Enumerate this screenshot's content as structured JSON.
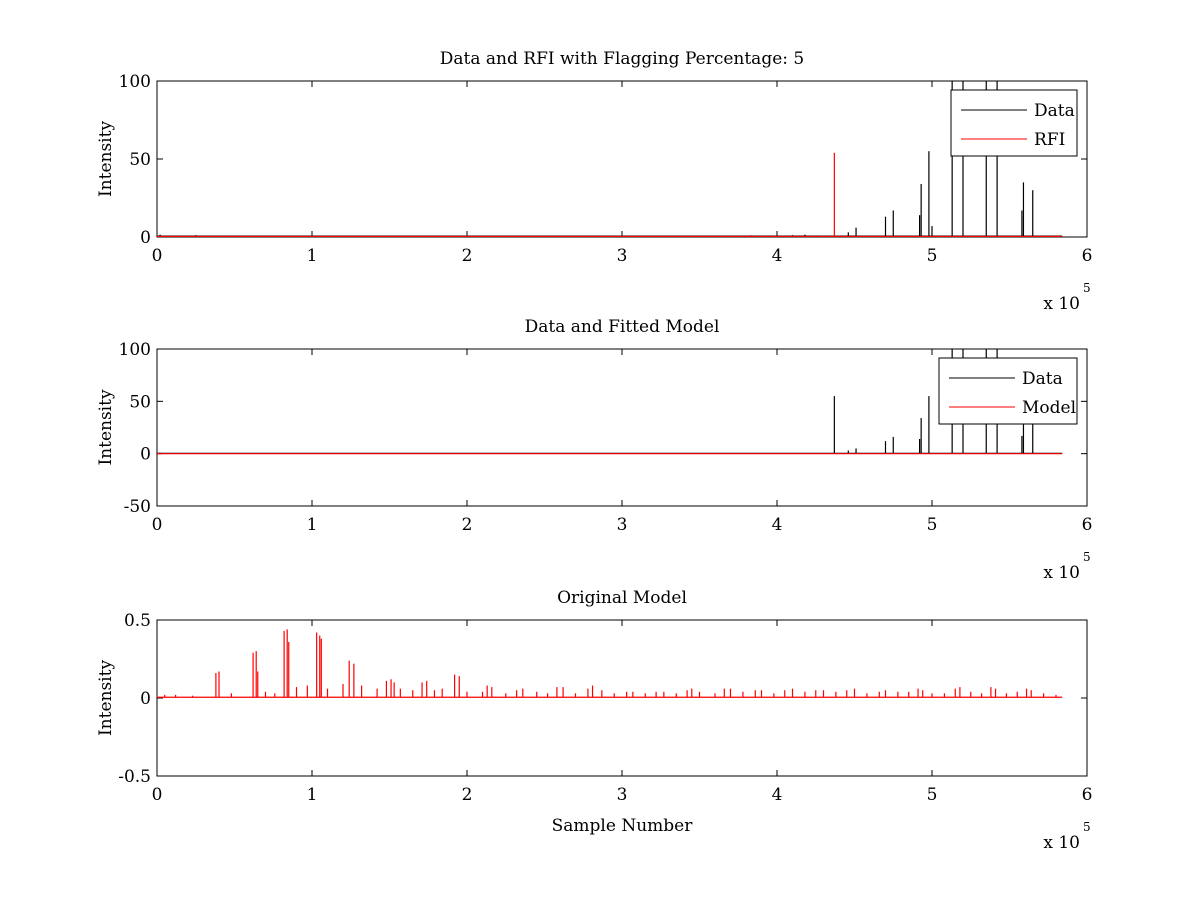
{
  "chart_data": [
    {
      "type": "line",
      "title": "Data and RFI with Flagging Percentage: 5",
      "xlabel": "",
      "ylabel": "Intensity",
      "xlim": [
        0,
        600000
      ],
      "ylim": [
        0,
        100
      ],
      "xticks": [
        "0",
        "1",
        "2",
        "3",
        "4",
        "5",
        "6"
      ],
      "yticks": [
        "0",
        "50",
        "100"
      ],
      "x_multiplier": {
        "text": "x 10",
        "exponent": "5"
      },
      "grid": false,
      "legend_position": "top-right",
      "series": [
        {
          "name": "Data",
          "color": "#000000",
          "baseline": 0.6,
          "spikes": [
            [
              2000,
              1.5
            ],
            [
              9000,
              1.0
            ],
            [
              25000,
              1.2
            ],
            [
              100000,
              0.8
            ],
            [
              200000,
              0.6
            ],
            [
              310000,
              0.9
            ],
            [
              340000,
              0.7
            ],
            [
              395000,
              1.0
            ],
            [
              410000,
              1.2
            ],
            [
              418000,
              1.5
            ],
            [
              426000,
              1.0
            ],
            [
              446000,
              3.0
            ],
            [
              451000,
              6.0
            ],
            [
              470000,
              13.0
            ],
            [
              475000,
              17.0
            ],
            [
              492000,
              14.0
            ],
            [
              493000,
              34.0
            ],
            [
              498000,
              55.0
            ],
            [
              500000,
              7.0
            ],
            [
              513000,
              100.0
            ],
            [
              520000,
              100.0
            ],
            [
              535000,
              100.0
            ],
            [
              542000,
              100.0
            ],
            [
              558000,
              17.0
            ],
            [
              559000,
              35.0
            ],
            [
              565000,
              30.0
            ],
            [
              583000,
              1.0
            ]
          ]
        },
        {
          "name": "RFI",
          "color": "#ff0000",
          "baseline": 0.3,
          "spikes": [
            [
              5000,
              0.6
            ],
            [
              50000,
              0.8
            ],
            [
              120000,
              0.5
            ],
            [
              210000,
              0.6
            ],
            [
              260000,
              0.5
            ],
            [
              285000,
              0.7
            ],
            [
              383000,
              1.2
            ],
            [
              437000,
              54.0
            ]
          ]
        }
      ]
    },
    {
      "type": "line",
      "title": "Data and Fitted Model",
      "xlabel": "",
      "ylabel": "Intensity",
      "xlim": [
        0,
        600000
      ],
      "ylim": [
        -50,
        100
      ],
      "xticks": [
        "0",
        "1",
        "2",
        "3",
        "4",
        "5",
        "6"
      ],
      "yticks": [
        "-50",
        "0",
        "50",
        "100"
      ],
      "x_multiplier": {
        "text": "x 10",
        "exponent": "5"
      },
      "grid": false,
      "legend_position": "top-right",
      "series": [
        {
          "name": "Data",
          "color": "#000000",
          "baseline": 0.3,
          "spikes": [
            [
              2000,
              0.8
            ],
            [
              437000,
              55.0
            ],
            [
              446000,
              3.0
            ],
            [
              451000,
              5.0
            ],
            [
              470000,
              12.0
            ],
            [
              475000,
              16.0
            ],
            [
              492000,
              14.0
            ],
            [
              493000,
              34.0
            ],
            [
              498000,
              55.0
            ],
            [
              513000,
              100.0
            ],
            [
              520000,
              100.0
            ],
            [
              535000,
              100.0
            ],
            [
              542000,
              100.0
            ],
            [
              558000,
              17.0
            ],
            [
              559000,
              35.0
            ],
            [
              565000,
              30.0
            ]
          ]
        },
        {
          "name": "Model",
          "color": "#ff0000",
          "baseline": 0.0,
          "spikes": [
            [
              3000,
              0.6
            ],
            [
              8000,
              0.4
            ]
          ]
        }
      ]
    },
    {
      "type": "line",
      "title": "Original Model",
      "xlabel": "Sample Number",
      "ylabel": "Intensity",
      "xlim": [
        0,
        600000
      ],
      "ylim": [
        -0.5,
        0.5
      ],
      "xticks": [
        "0",
        "1",
        "2",
        "3",
        "4",
        "5",
        "6"
      ],
      "yticks": [
        "-0.5",
        "0",
        "0.5"
      ],
      "x_multiplier": {
        "text": "x 10",
        "exponent": "5"
      },
      "grid": false,
      "legend_position": "none",
      "series": [
        {
          "color": "#ff0000",
          "baseline": 0.005,
          "spikes": [
            [
              5000,
              0.02
            ],
            [
              12000,
              0.02
            ],
            [
              23000,
              0.015
            ],
            [
              38000,
              0.16
            ],
            [
              40000,
              0.17
            ],
            [
              48000,
              0.03
            ],
            [
              62000,
              0.29
            ],
            [
              64000,
              0.3
            ],
            [
              65000,
              0.17
            ],
            [
              70000,
              0.04
            ],
            [
              76000,
              0.03
            ],
            [
              82000,
              0.43
            ],
            [
              84000,
              0.44
            ],
            [
              85000,
              0.36
            ],
            [
              90000,
              0.07
            ],
            [
              97000,
              0.08
            ],
            [
              103000,
              0.42
            ],
            [
              105000,
              0.4
            ],
            [
              106000,
              0.38
            ],
            [
              110000,
              0.06
            ],
            [
              120000,
              0.09
            ],
            [
              124000,
              0.24
            ],
            [
              127000,
              0.22
            ],
            [
              132000,
              0.08
            ],
            [
              142000,
              0.06
            ],
            [
              148000,
              0.11
            ],
            [
              151000,
              0.12
            ],
            [
              153000,
              0.1
            ],
            [
              157000,
              0.06
            ],
            [
              165000,
              0.05
            ],
            [
              171000,
              0.1
            ],
            [
              174000,
              0.11
            ],
            [
              179000,
              0.05
            ],
            [
              184000,
              0.06
            ],
            [
              192000,
              0.15
            ],
            [
              195000,
              0.14
            ],
            [
              200000,
              0.04
            ],
            [
              210000,
              0.04
            ],
            [
              213000,
              0.08
            ],
            [
              216000,
              0.07
            ],
            [
              225000,
              0.03
            ],
            [
              232000,
              0.05
            ],
            [
              236000,
              0.06
            ],
            [
              245000,
              0.04
            ],
            [
              252000,
              0.03
            ],
            [
              258000,
              0.07
            ],
            [
              262000,
              0.07
            ],
            [
              270000,
              0.03
            ],
            [
              278000,
              0.06
            ],
            [
              281000,
              0.08
            ],
            [
              287000,
              0.05
            ],
            [
              295000,
              0.03
            ],
            [
              303000,
              0.04
            ],
            [
              307000,
              0.04
            ],
            [
              315000,
              0.03
            ],
            [
              322000,
              0.04
            ],
            [
              327000,
              0.04
            ],
            [
              335000,
              0.03
            ],
            [
              342000,
              0.05
            ],
            [
              345000,
              0.06
            ],
            [
              350000,
              0.04
            ],
            [
              360000,
              0.03
            ],
            [
              366000,
              0.06
            ],
            [
              370000,
              0.06
            ],
            [
              378000,
              0.04
            ],
            [
              386000,
              0.05
            ],
            [
              390000,
              0.05
            ],
            [
              398000,
              0.03
            ],
            [
              405000,
              0.05
            ],
            [
              410000,
              0.06
            ],
            [
              418000,
              0.04
            ],
            [
              425000,
              0.05
            ],
            [
              430000,
              0.05
            ],
            [
              438000,
              0.04
            ],
            [
              445000,
              0.05
            ],
            [
              450000,
              0.06
            ],
            [
              458000,
              0.03
            ],
            [
              466000,
              0.04
            ],
            [
              470000,
              0.05
            ],
            [
              478000,
              0.04
            ],
            [
              485000,
              0.04
            ],
            [
              491000,
              0.06
            ],
            [
              494000,
              0.05
            ],
            [
              500000,
              0.03
            ],
            [
              508000,
              0.03
            ],
            [
              515000,
              0.06
            ],
            [
              518000,
              0.07
            ],
            [
              525000,
              0.04
            ],
            [
              532000,
              0.03
            ],
            [
              538000,
              0.07
            ],
            [
              541000,
              0.06
            ],
            [
              548000,
              0.03
            ],
            [
              555000,
              0.04
            ],
            [
              561000,
              0.06
            ],
            [
              564000,
              0.05
            ],
            [
              572000,
              0.03
            ],
            [
              580000,
              0.02
            ]
          ]
        }
      ]
    }
  ]
}
